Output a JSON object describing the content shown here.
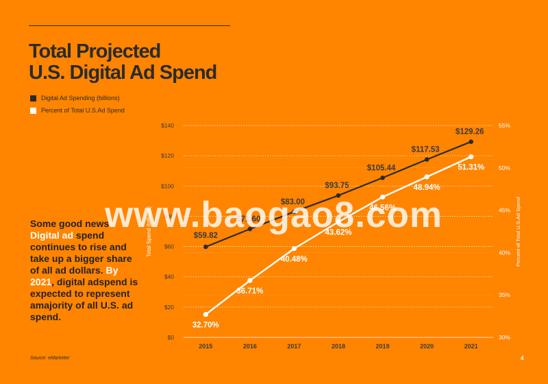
{
  "slide": {
    "title_line1": "Total Projected",
    "title_line2": "U.S. Digital Ad Spend",
    "source": "Source: eMarketer",
    "page_number": "4",
    "watermark": "www.baogao8.com"
  },
  "body": {
    "t1": "Some good news. ",
    "t2": "Digital ad",
    "t3": " spend continues to rise and take up a bigger share of all ad dollars. ",
    "t4": "By 2021",
    "t5": ", digital adspend is expected to represent amajority of all U.S. ad spend."
  },
  "colors": {
    "background": "#FF8400",
    "series_dark": "#2b2b2b",
    "series_light": "#ffffff"
  },
  "chart_data": {
    "type": "line",
    "categories": [
      "2015",
      "2016",
      "2017",
      "2018",
      "2019",
      "2020",
      "2021"
    ],
    "series": [
      {
        "name": "Digital Ad Spending (billions)",
        "axis": "left",
        "color": "#2b2b2b",
        "values": [
          59.82,
          71.6,
          83.0,
          93.75,
          105.44,
          117.53,
          129.26
        ],
        "labels": [
          "$59.82",
          "$71.60",
          "$83.00",
          "$93.75",
          "$105.44",
          "$117.53",
          "$129.26"
        ]
      },
      {
        "name": "Percent of Total U.S.Ad Spend",
        "axis": "right",
        "color": "#ffffff",
        "values": [
          32.7,
          36.71,
          40.48,
          43.62,
          46.56,
          48.94,
          51.31
        ],
        "labels": [
          "32.70%",
          "36.71%",
          "40.48%",
          "43.62%",
          "46.56%",
          "48.94%",
          "51.31%"
        ]
      }
    ],
    "y_left": {
      "label": "Total Spend (billions)",
      "min": 0,
      "max": 140,
      "ticks": [
        "$0",
        "$20",
        "$40",
        "$60",
        "$80",
        "$100",
        "$120",
        "$140"
      ]
    },
    "y_right": {
      "label": "Percent of Total U.S.Ad Spend",
      "min": 30,
      "max": 55,
      "ticks": [
        "30%",
        "35%",
        "40%",
        "45%",
        "50%",
        "55%"
      ]
    },
    "grid": true,
    "legend": "top-left"
  }
}
